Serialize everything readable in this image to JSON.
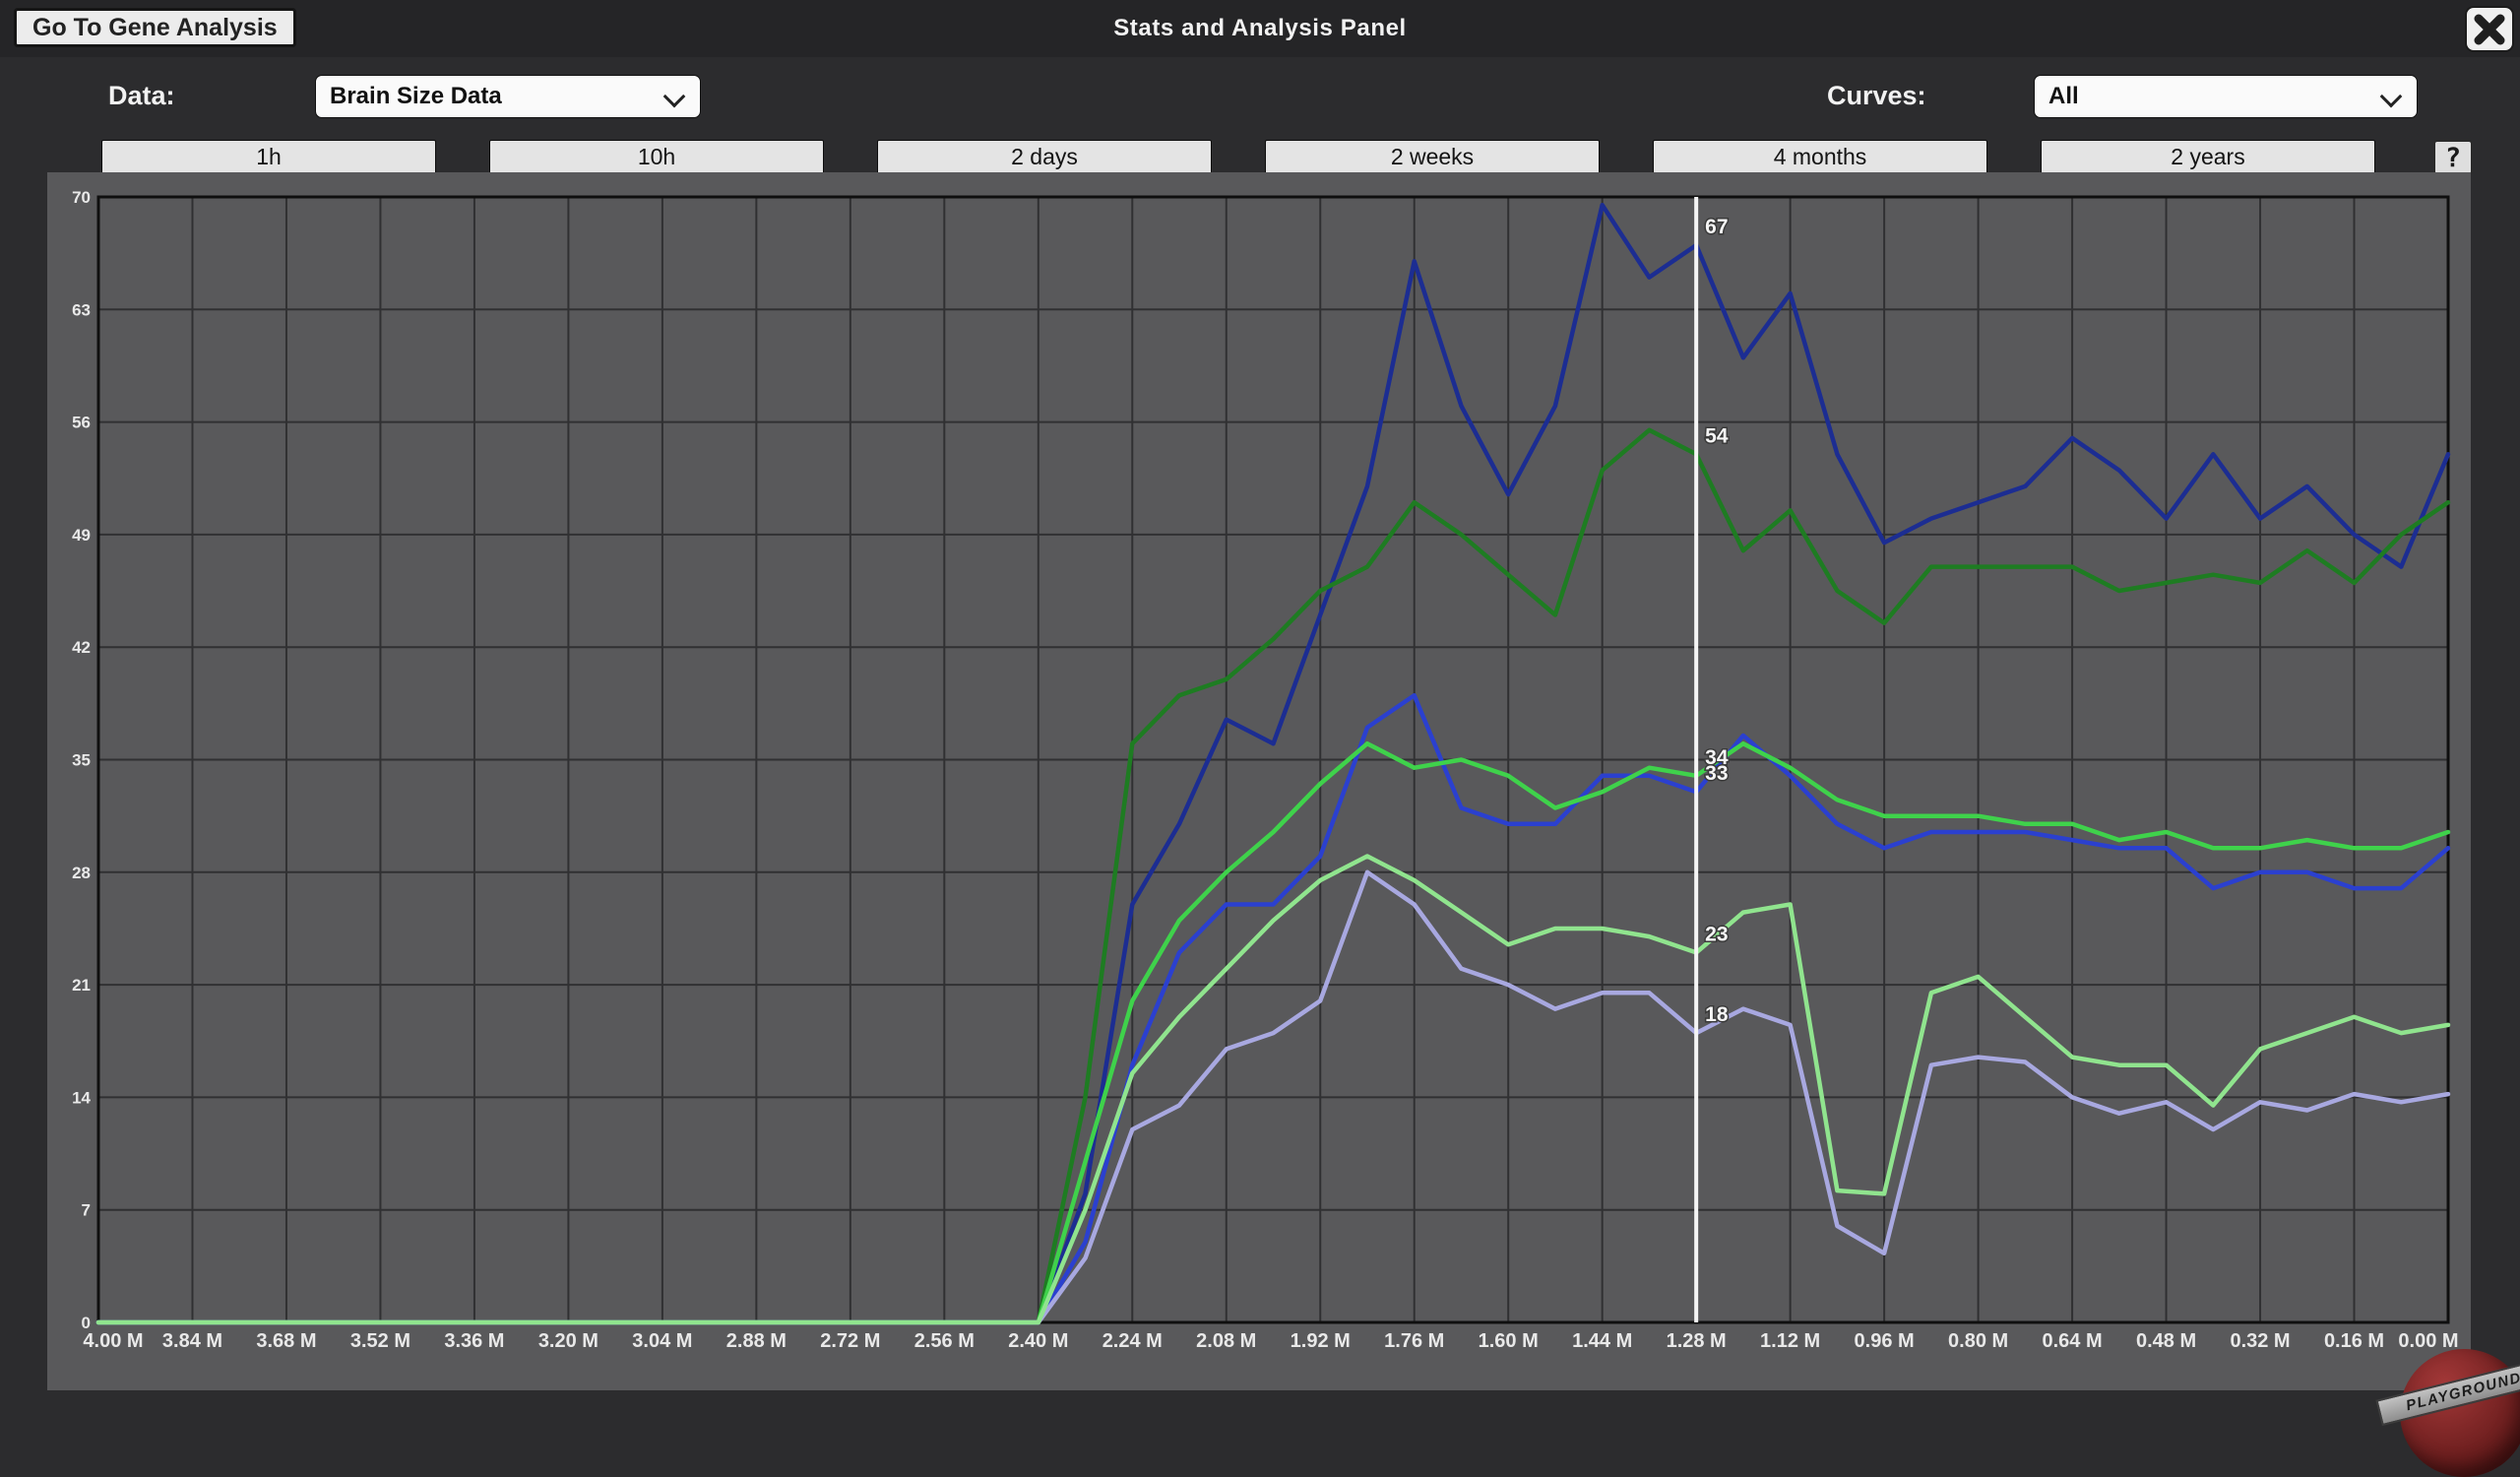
{
  "header": {
    "back_button": "Go To Gene Analysis",
    "title": "Stats and Analysis Panel"
  },
  "controls": {
    "data_label": "Data:",
    "data_value": "Brain Size Data",
    "curves_label": "Curves:",
    "curves_value": "All"
  },
  "range_buttons": [
    "1h",
    "10h",
    "2 days",
    "2 weeks",
    "4 months",
    "2 years"
  ],
  "help_button_label": "?",
  "watermark": {
    "text": "PLAYGROUND"
  },
  "colors": {
    "panel": "#59595b",
    "plot_border": "#0f0f0f",
    "grid": "#303032",
    "cursor": "#f5f5f5",
    "tick_text": "#e9e9e9"
  },
  "chart_data": {
    "type": "line",
    "title": "",
    "xlabel": "",
    "ylabel": "",
    "xlim": [
      4.0,
      0.0
    ],
    "ylim": [
      0,
      70
    ],
    "grid": true,
    "x_tick_labels": [
      "4.00 M",
      "3.84 M",
      "3.68 M",
      "3.52 M",
      "3.36 M",
      "3.20 M",
      "3.04 M",
      "2.88 M",
      "2.72 M",
      "2.56 M",
      "2.40 M",
      "2.24 M",
      "2.08 M",
      "1.92 M",
      "1.76 M",
      "1.60 M",
      "1.44 M",
      "1.28 M",
      "1.12 M",
      "0.96 M",
      "0.80 M",
      "0.64 M",
      "0.48 M",
      "0.32 M",
      "0.16 M",
      "0.00 M"
    ],
    "y_ticks": [
      70,
      63,
      56,
      49,
      42,
      35,
      28,
      21,
      14,
      7,
      0
    ],
    "x_start": 4.0,
    "x_step": -0.08,
    "cursor": {
      "x": 1.28,
      "labels": [
        {
          "series": "dark-blue",
          "value": 67
        },
        {
          "series": "dark-green",
          "value": 54
        },
        {
          "series": "bright-green",
          "value": 34
        },
        {
          "series": "blue",
          "value": 33
        },
        {
          "series": "light-green",
          "value": 23
        },
        {
          "series": "lavender",
          "value": 18
        }
      ]
    },
    "series": [
      {
        "name": "dark-blue",
        "color": "#1c2d92",
        "values": [
          0,
          0,
          0,
          0,
          0,
          0,
          0,
          0,
          0,
          0,
          0,
          0,
          0,
          0,
          0,
          0,
          0,
          0,
          0,
          0,
          0,
          8,
          26,
          31,
          37.5,
          36,
          44,
          52,
          66,
          57,
          51.5,
          57,
          69.5,
          65,
          67,
          60,
          64,
          54,
          48.5,
          50,
          51,
          52,
          55,
          53,
          50,
          54,
          50,
          52,
          49,
          47,
          54
        ]
      },
      {
        "name": "dark-green",
        "color": "#1e7c22",
        "values": [
          0,
          0,
          0,
          0,
          0,
          0,
          0,
          0,
          0,
          0,
          0,
          0,
          0,
          0,
          0,
          0,
          0,
          0,
          0,
          0,
          0,
          14,
          36,
          39,
          40,
          42.5,
          45.5,
          47,
          51,
          49,
          46.5,
          44,
          53,
          55.5,
          54,
          48,
          50.5,
          45.5,
          43.5,
          47,
          47,
          47,
          47,
          45.5,
          46,
          46.5,
          46,
          48,
          46,
          49,
          51
        ]
      },
      {
        "name": "blue",
        "color": "#2b40cf",
        "values": [
          0,
          0,
          0,
          0,
          0,
          0,
          0,
          0,
          0,
          0,
          0,
          0,
          0,
          0,
          0,
          0,
          0,
          0,
          0,
          0,
          0,
          5,
          16,
          23,
          26,
          26,
          29,
          37,
          39,
          32,
          31,
          31,
          34,
          34,
          33,
          36.5,
          34,
          31,
          29.5,
          30.5,
          30.5,
          30.5,
          30,
          29.5,
          29.5,
          27,
          28,
          28,
          27,
          27,
          29.5
        ]
      },
      {
        "name": "bright-green",
        "color": "#3fd24b",
        "values": [
          0,
          0,
          0,
          0,
          0,
          0,
          0,
          0,
          0,
          0,
          0,
          0,
          0,
          0,
          0,
          0,
          0,
          0,
          0,
          0,
          0,
          10,
          20,
          25,
          28,
          30.5,
          33.5,
          36,
          34.5,
          35,
          34,
          32,
          33,
          34.5,
          34,
          36,
          34.5,
          32.5,
          31.5,
          31.5,
          31.5,
          31,
          31,
          30,
          30.5,
          29.5,
          29.5,
          30,
          29.5,
          29.5,
          30.5
        ]
      },
      {
        "name": "lavender",
        "color": "#a8a8e0",
        "values": [
          0,
          0,
          0,
          0,
          0,
          0,
          0,
          0,
          0,
          0,
          0,
          0,
          0,
          0,
          0,
          0,
          0,
          0,
          0,
          0,
          0,
          4,
          12,
          13.5,
          17,
          18,
          20,
          28,
          26,
          22,
          21,
          19.5,
          20.5,
          20.5,
          18,
          19.5,
          18.5,
          6,
          4.3,
          16,
          16.5,
          16.2,
          14,
          13,
          13.7,
          12,
          13.7,
          13.2,
          14.2,
          13.7,
          14.2
        ]
      },
      {
        "name": "light-green",
        "color": "#90e48e",
        "values": [
          0,
          0,
          0,
          0,
          0,
          0,
          0,
          0,
          0,
          0,
          0,
          0,
          0,
          0,
          0,
          0,
          0,
          0,
          0,
          0,
          0,
          7,
          15.5,
          19,
          22,
          25,
          27.5,
          29,
          27.5,
          25.5,
          23.5,
          24.5,
          24.5,
          24,
          23,
          25.5,
          26,
          8.2,
          8,
          20.5,
          21.5,
          19,
          16.5,
          16,
          16,
          13.5,
          17,
          18,
          19,
          18,
          18.5
        ]
      }
    ]
  }
}
